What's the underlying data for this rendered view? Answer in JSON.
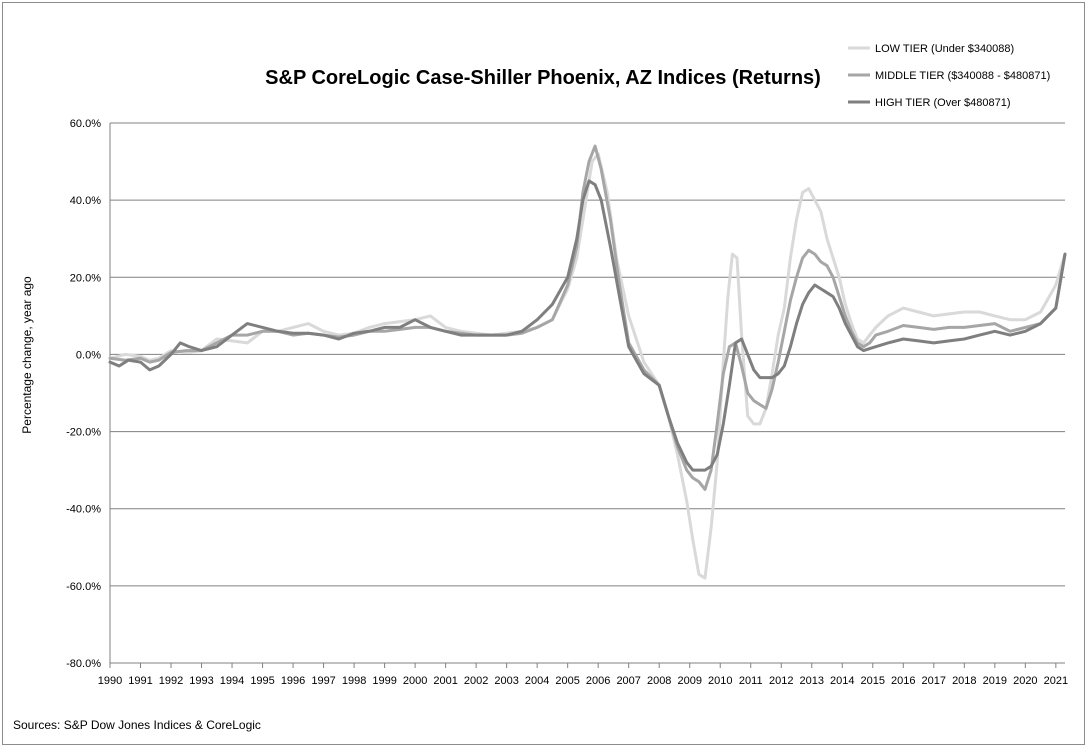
{
  "chart_data": {
    "type": "line",
    "title": "S&P CoreLogic Case-Shiller Phoenix, AZ Indices (Returns)",
    "ylabel": "Percentage change, year ago",
    "xlabel": "",
    "source": "Sources: S&P Dow Jones Indices & CoreLogic",
    "ylim": [
      -80,
      60
    ],
    "xlim": [
      1990.0,
      2021.3
    ],
    "y_ticks": [
      "60.0%",
      "40.0%",
      "20.0%",
      "0.0%",
      "-20.0%",
      "-40.0%",
      "-60.0%",
      "-80.0%"
    ],
    "y_tick_values": [
      60,
      40,
      20,
      0,
      -20,
      -40,
      -60,
      -80
    ],
    "x_ticks": [
      "1990",
      "1991",
      "1992",
      "1993",
      "1994",
      "1995",
      "1996",
      "1997",
      "1998",
      "1999",
      "2000",
      "2001",
      "2002",
      "2003",
      "2004",
      "2005",
      "2006",
      "2007",
      "2008",
      "2009",
      "2010",
      "2011",
      "2012",
      "2013",
      "2014",
      "2015",
      "2016",
      "2017",
      "2018",
      "2019",
      "2020",
      "2021"
    ],
    "grid": true,
    "legend_position": "top-right",
    "series": [
      {
        "name": "LOW TIER (Under $340088)",
        "color": "#d9d9d9",
        "x": [
          1990.0,
          1990.5,
          1991.0,
          1991.3,
          1991.6,
          1992.0,
          1992.5,
          1993.0,
          1993.5,
          1994.0,
          1994.5,
          1995.0,
          1995.5,
          1996.0,
          1996.5,
          1997.0,
          1997.5,
          1998.0,
          1998.5,
          1999.0,
          1999.5,
          2000.0,
          2000.5,
          2001.0,
          2001.5,
          2002.0,
          2002.5,
          2003.0,
          2003.5,
          2004.0,
          2004.5,
          2005.0,
          2005.3,
          2005.6,
          2005.8,
          2006.0,
          2006.3,
          2006.6,
          2007.0,
          2007.5,
          2008.0,
          2008.3,
          2008.6,
          2008.9,
          2009.1,
          2009.3,
          2009.5,
          2009.7,
          2009.9,
          2010.1,
          2010.25,
          2010.4,
          2010.55,
          2010.7,
          2010.9,
          2011.1,
          2011.3,
          2011.5,
          2011.7,
          2011.9,
          2012.1,
          2012.3,
          2012.5,
          2012.7,
          2012.9,
          2013.1,
          2013.3,
          2013.5,
          2013.7,
          2013.9,
          2014.1,
          2014.3,
          2014.5,
          2014.7,
          2014.9,
          2015.1,
          2015.5,
          2016.0,
          2016.5,
          2017.0,
          2017.5,
          2018.0,
          2018.5,
          2019.0,
          2019.5,
          2020.0,
          2020.5,
          2021.0,
          2021.3
        ],
        "values": [
          -1,
          0,
          -0.5,
          -1.5,
          -1,
          1,
          0.5,
          1,
          4,
          3.5,
          3,
          6,
          6,
          7,
          8,
          6,
          5,
          5.5,
          7,
          8,
          8.5,
          9,
          10,
          7,
          6,
          5.5,
          5,
          5.5,
          6,
          7,
          9,
          17,
          25,
          40,
          50,
          52,
          42,
          25,
          10,
          -2,
          -8,
          -16,
          -26,
          -38,
          -48,
          -57,
          -58,
          -45,
          -28,
          -2,
          15,
          26,
          25,
          5,
          -16,
          -18,
          -18,
          -14,
          -5,
          5,
          12,
          25,
          35,
          42,
          43,
          40,
          37,
          30,
          25,
          20,
          13,
          8,
          4,
          3,
          5,
          7,
          10,
          12,
          11,
          10,
          10.5,
          11,
          11,
          10,
          9,
          9,
          11,
          18,
          26
        ]
      },
      {
        "name": "MIDDLE TIER ($340088 - $480871)",
        "color": "#a6a6a6",
        "x": [
          1990.0,
          1990.5,
          1991.0,
          1991.3,
          1991.6,
          1992.0,
          1992.5,
          1993.0,
          1993.5,
          1994.0,
          1994.5,
          1995.0,
          1995.5,
          1996.0,
          1996.5,
          1997.0,
          1997.5,
          1998.0,
          1998.5,
          1999.0,
          1999.5,
          2000.0,
          2000.5,
          2001.0,
          2001.5,
          2002.0,
          2002.5,
          2003.0,
          2003.5,
          2004.0,
          2004.5,
          2005.0,
          2005.3,
          2005.5,
          2005.7,
          2005.9,
          2006.1,
          2006.4,
          2006.7,
          2007.0,
          2007.5,
          2008.0,
          2008.3,
          2008.6,
          2008.9,
          2009.1,
          2009.3,
          2009.5,
          2009.7,
          2009.9,
          2010.1,
          2010.3,
          2010.5,
          2010.7,
          2010.9,
          2011.1,
          2011.3,
          2011.5,
          2011.7,
          2011.9,
          2012.1,
          2012.3,
          2012.5,
          2012.7,
          2012.9,
          2013.1,
          2013.3,
          2013.5,
          2013.7,
          2013.9,
          2014.1,
          2014.3,
          2014.5,
          2014.7,
          2014.9,
          2015.1,
          2015.5,
          2016.0,
          2016.5,
          2017.0,
          2017.5,
          2018.0,
          2018.5,
          2019.0,
          2019.5,
          2020.0,
          2020.5,
          2021.0,
          2021.3
        ],
        "values": [
          -1,
          -1.5,
          -1,
          -2,
          -1.5,
          0.5,
          1,
          1,
          3,
          5,
          5,
          6,
          6,
          5,
          5.5,
          5,
          4.5,
          5,
          6,
          6,
          6.5,
          7,
          7,
          6,
          5.5,
          5,
          5,
          5,
          5.5,
          7,
          9,
          18,
          28,
          42,
          50,
          54,
          48,
          35,
          18,
          3,
          -4,
          -8,
          -16,
          -24,
          -30,
          -32,
          -33,
          -35,
          -30,
          -18,
          -5,
          2,
          3,
          -3,
          -10,
          -12,
          -13,
          -14,
          -9,
          -2,
          6,
          14,
          20,
          25,
          27,
          26,
          24,
          23,
          20,
          15,
          10,
          6,
          3,
          2,
          3,
          5,
          6,
          7.5,
          7,
          6.5,
          7,
          7,
          7.5,
          8,
          6,
          7,
          8,
          12,
          26
        ]
      },
      {
        "name": "HIGH TIER (Over $480871)",
        "color": "#7f7f7f",
        "x": [
          1990.0,
          1990.3,
          1990.6,
          1991.0,
          1991.3,
          1991.6,
          1992.0,
          1992.3,
          1992.6,
          1993.0,
          1993.5,
          1994.0,
          1994.5,
          1995.0,
          1995.5,
          1996.0,
          1996.5,
          1997.0,
          1997.5,
          1998.0,
          1998.5,
          1999.0,
          1999.5,
          2000.0,
          2000.5,
          2001.0,
          2001.5,
          2002.0,
          2002.5,
          2003.0,
          2003.5,
          2004.0,
          2004.5,
          2005.0,
          2005.3,
          2005.5,
          2005.7,
          2005.9,
          2006.1,
          2006.4,
          2006.7,
          2007.0,
          2007.5,
          2008.0,
          2008.3,
          2008.6,
          2008.9,
          2009.1,
          2009.3,
          2009.5,
          2009.7,
          2009.9,
          2010.1,
          2010.3,
          2010.5,
          2010.7,
          2010.9,
          2011.1,
          2011.3,
          2011.5,
          2011.7,
          2011.9,
          2012.1,
          2012.3,
          2012.5,
          2012.7,
          2012.9,
          2013.1,
          2013.3,
          2013.5,
          2013.7,
          2013.9,
          2014.1,
          2014.3,
          2014.5,
          2014.7,
          2014.9,
          2015.1,
          2015.5,
          2016.0,
          2016.5,
          2017.0,
          2017.5,
          2018.0,
          2018.5,
          2019.0,
          2019.5,
          2020.0,
          2020.5,
          2021.0,
          2021.3
        ],
        "values": [
          -2,
          -3,
          -1.5,
          -2,
          -4,
          -3,
          0,
          3,
          2,
          1,
          2,
          5,
          8,
          7,
          6,
          5.5,
          5.5,
          5,
          4,
          5.5,
          6,
          7,
          7,
          9,
          7,
          6,
          5,
          5,
          5,
          5,
          6,
          9,
          13,
          20,
          30,
          40,
          45,
          44,
          40,
          28,
          15,
          2,
          -5,
          -8,
          -16,
          -23,
          -28,
          -30,
          -30,
          -30,
          -29,
          -26,
          -18,
          -8,
          3,
          4,
          0,
          -4,
          -6,
          -6,
          -6,
          -5,
          -3,
          2,
          8,
          13,
          16,
          18,
          17,
          16,
          15,
          12,
          8,
          5,
          2,
          1,
          1.5,
          2,
          3,
          4,
          3.5,
          3,
          3.5,
          4,
          5,
          6,
          5,
          6,
          8,
          12,
          26
        ]
      }
    ]
  }
}
